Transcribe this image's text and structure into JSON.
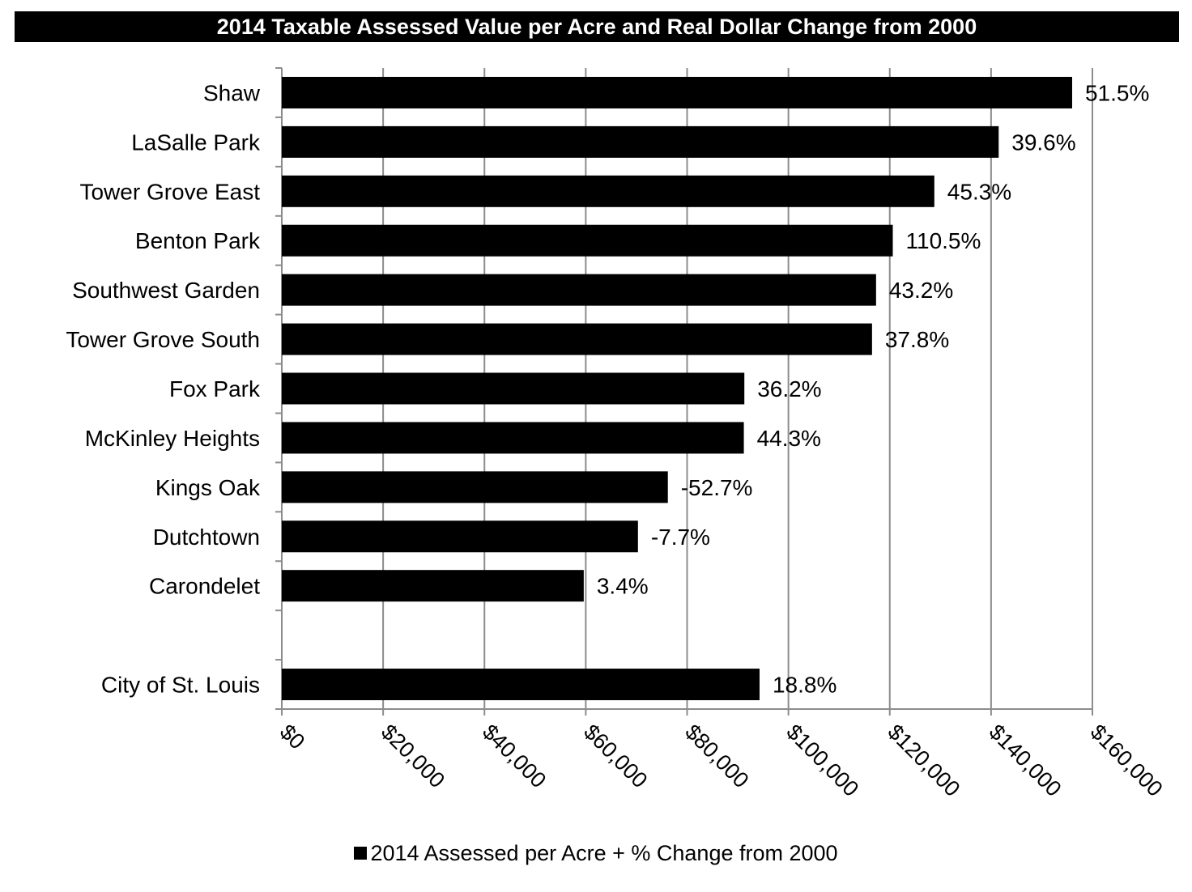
{
  "chart_data": {
    "type": "bar",
    "orientation": "horizontal",
    "title": "2014 Taxable Assessed Value per Acre and Real Dollar Change from 2000",
    "xlabel": "",
    "ylabel": "",
    "xlim": [
      0,
      160000
    ],
    "x_ticks": [
      0,
      20000,
      40000,
      60000,
      80000,
      100000,
      120000,
      140000,
      160000
    ],
    "x_tick_labels": [
      "$0",
      "$20,000",
      "$40,000",
      "$60,000",
      "$80,000",
      "$100,000",
      "$120,000",
      "$140,000",
      "$160,000"
    ],
    "grid": "vertical",
    "legend_position": "bottom",
    "bar_color": "#000000",
    "categories": [
      "Shaw",
      "LaSalle Park",
      "Tower Grove East",
      "Benton Park",
      "Southwest Garden",
      "Tower Grove South",
      "Fox Park",
      "McKinley Heights",
      "Kings Oak",
      "Dutchtown",
      "Carondelet",
      "",
      "City of St. Louis"
    ],
    "series": [
      {
        "name": "2014 Assessed per Acre + % Change from 2000",
        "values": [
          156000,
          141500,
          128800,
          120600,
          117300,
          116500,
          91300,
          91200,
          76200,
          70300,
          59600,
          null,
          94300
        ],
        "data_labels": [
          "51.5%",
          "39.6%",
          "45.3%",
          "110.5%",
          "43.2%",
          "37.8%",
          "36.2%",
          "44.3%",
          "-52.7%",
          "-7.7%",
          "3.4%",
          "",
          "18.8%"
        ]
      }
    ]
  }
}
